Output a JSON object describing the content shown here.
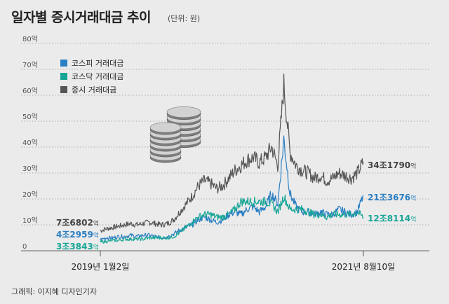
{
  "title": "일자별 증시거래대금 추이",
  "unit": "(단위: 원)",
  "credit": "그래픽: 이지혜 디자인기자",
  "chart_data": {
    "type": "line",
    "title": "일자별 증시거래대금 추이",
    "unit": "원",
    "y_ticks": [
      "0",
      "10억",
      "20억",
      "30억",
      "40억",
      "50억",
      "60억",
      "70억",
      "80억"
    ],
    "ylim": [
      0,
      80
    ],
    "x_start_label": "2019년 1월2일",
    "x_end_label": "2021년 8월10일",
    "legend": [
      {
        "name": "코스피 거래대금",
        "color": "#2b7fc3"
      },
      {
        "name": "코스닥 거래대금",
        "color": "#16a596"
      },
      {
        "name": "증시 거래대금",
        "color": "#555555"
      }
    ],
    "start_labels": [
      {
        "a": "7조",
        "b": "6802",
        "c": "억",
        "color": "#444444"
      },
      {
        "a": "4조",
        "b": "2959",
        "c": "억",
        "color": "#2b7fc3"
      },
      {
        "a": "3조",
        "b": "3843",
        "c": "억",
        "color": "#16a596"
      }
    ],
    "end_labels": [
      {
        "a": "34조",
        "b": "1790",
        "c": "억",
        "color": "#444444"
      },
      {
        "a": "21조",
        "b": "3676",
        "c": "억",
        "color": "#2b7fc3"
      },
      {
        "a": "12조",
        "b": "8114",
        "c": "억",
        "color": "#16a596"
      }
    ],
    "series": [
      {
        "name": "증시 거래대금",
        "color": "#555555",
        "values": [
          7.7,
          8.5,
          9.0,
          9.5,
          10.0,
          10.5,
          10.0,
          10.5,
          11.0,
          10.5,
          10.0,
          10.5,
          12.0,
          15.0,
          18.0,
          21.0,
          25.0,
          27.0,
          26.0,
          24.0,
          25.0,
          28.0,
          31.0,
          33.0,
          35.0,
          36.0,
          34.0,
          36.0,
          40.0,
          33.0,
          64.0,
          38.0,
          33.0,
          31.0,
          30.0,
          28.0,
          29.0,
          27.0,
          28.0,
          30.0,
          29.0,
          28.0,
          30.0,
          34.2
        ]
      },
      {
        "name": "코스피 거래대금",
        "color": "#2b7fc3",
        "values": [
          4.3,
          5.0,
          5.0,
          5.5,
          5.5,
          6.0,
          5.5,
          6.0,
          6.0,
          5.5,
          5.0,
          5.5,
          6.5,
          8.0,
          9.0,
          10.0,
          12.0,
          13.0,
          12.0,
          11.0,
          12.0,
          14.0,
          15.0,
          14.0,
          16.0,
          17.0,
          15.0,
          17.0,
          22.0,
          18.0,
          43.0,
          22.0,
          17.0,
          15.0,
          15.0,
          14.0,
          15.0,
          14.0,
          14.0,
          16.0,
          15.0,
          14.0,
          15.0,
          21.4
        ]
      },
      {
        "name": "코스닥 거래대금",
        "color": "#16a596",
        "values": [
          3.4,
          3.6,
          4.0,
          4.0,
          4.5,
          4.5,
          4.5,
          4.5,
          5.0,
          5.0,
          5.0,
          5.0,
          5.5,
          7.0,
          9.0,
          11.0,
          13.0,
          14.0,
          14.0,
          13.0,
          13.0,
          14.0,
          16.0,
          19.0,
          19.0,
          19.0,
          19.0,
          19.0,
          18.0,
          15.0,
          21.0,
          16.0,
          16.0,
          16.0,
          15.0,
          14.0,
          14.0,
          13.0,
          14.0,
          14.0,
          14.0,
          14.0,
          15.0,
          12.8
        ]
      }
    ]
  }
}
